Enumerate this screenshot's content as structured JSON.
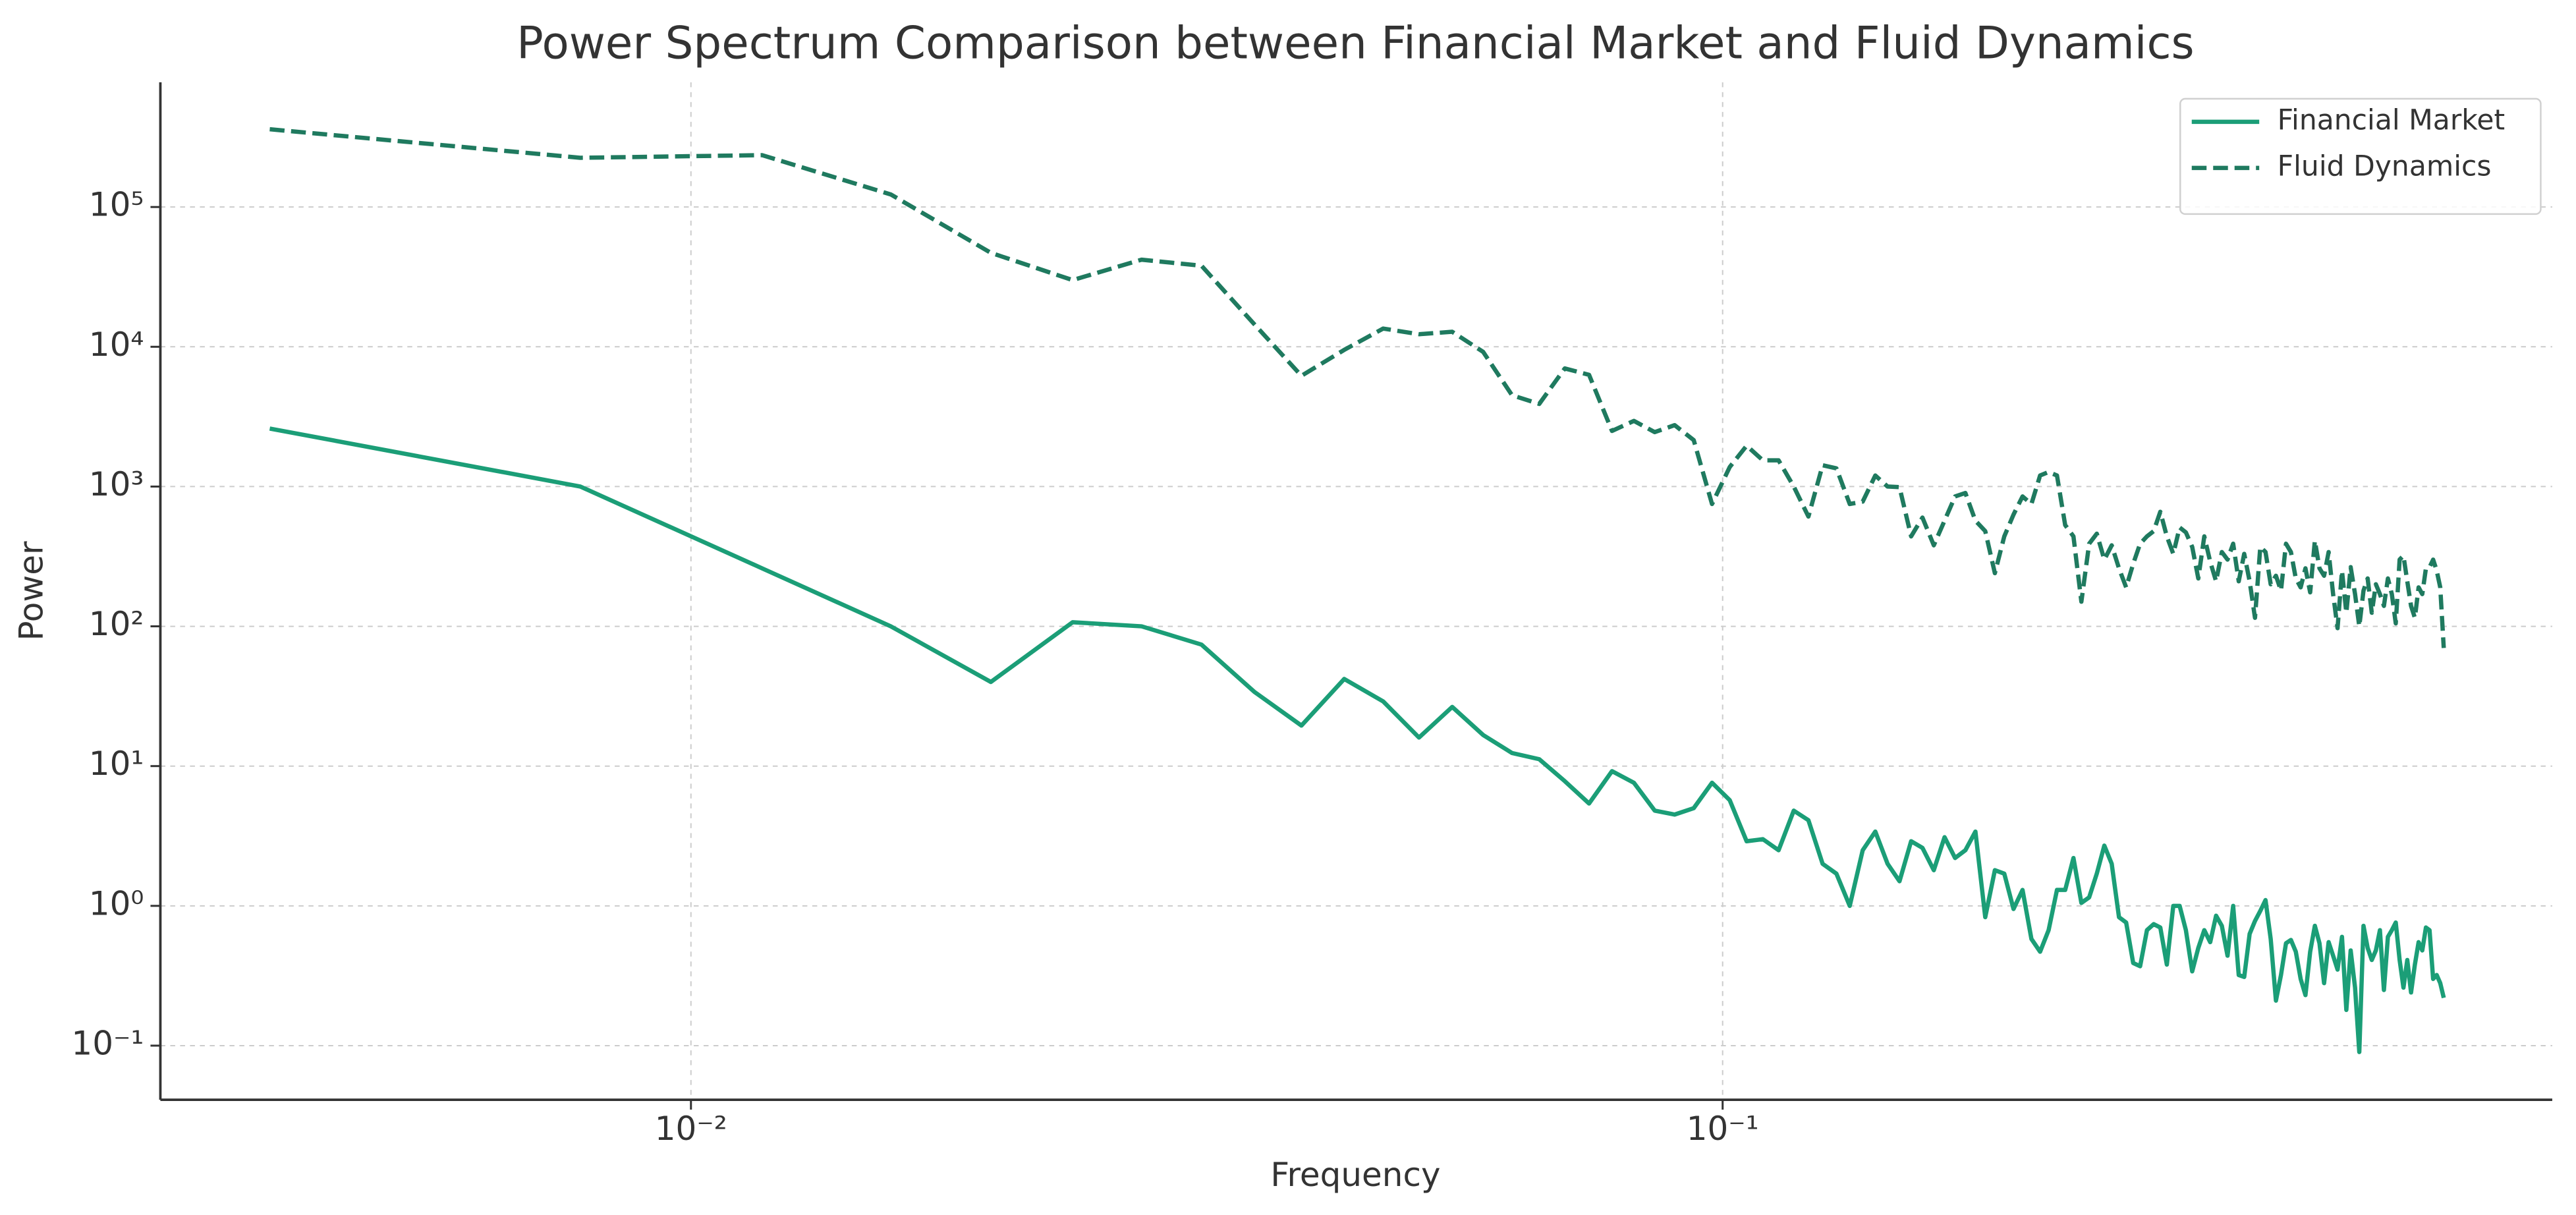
{
  "chart_data": {
    "type": "line",
    "title": "Power Spectrum Comparison between Financial Market and Fluid Dynamics",
    "xlabel": "Frequency",
    "ylabel": "Power",
    "xscale": "log",
    "yscale": "log",
    "grid": true,
    "legend": "upper right",
    "xlim": [
      0.00306,
      0.637
    ],
    "ylim": [
      0.041,
      780000
    ],
    "xticks": [
      {
        "value": 0.01,
        "label": "10⁻²"
      },
      {
        "value": 0.1,
        "label": "10⁻¹"
      }
    ],
    "yticks": [
      {
        "value": 0.1,
        "label": "10⁻¹"
      },
      {
        "value": 1,
        "label": "10⁰"
      },
      {
        "value": 10,
        "label": "10¹"
      },
      {
        "value": 100,
        "label": "10²"
      },
      {
        "value": 1000,
        "label": "10³"
      },
      {
        "value": 10000,
        "label": "10⁴"
      },
      {
        "value": 100000,
        "label": "10⁵"
      }
    ],
    "x": [
      0.003906,
      0.007812,
      0.01172,
      0.01562,
      0.01953,
      0.02344,
      0.02734,
      0.03125,
      0.03516,
      0.03906,
      0.04297,
      0.04688,
      0.05078,
      0.05469,
      0.05859,
      0.0625,
      0.06641,
      0.07031,
      0.07422,
      0.07812,
      0.08203,
      0.08594,
      0.08984,
      0.09375,
      0.09766,
      0.1016,
      0.1055,
      0.1094,
      0.1133,
      0.1172,
      0.1211,
      0.125,
      0.1289,
      0.1328,
      0.1367,
      0.1406,
      0.1445,
      0.1484,
      0.1523,
      0.1562,
      0.1602,
      0.1641,
      0.168,
      0.1719,
      0.1758,
      0.1797,
      0.1836,
      0.1875,
      0.1914,
      0.1953,
      0.1992,
      0.2031,
      0.207,
      0.2109,
      0.2148,
      0.2188,
      0.2227,
      0.2266,
      0.2305,
      0.2344,
      0.2383,
      0.2422,
      0.2461,
      0.25,
      0.2539,
      0.2578,
      0.2617,
      0.2656,
      0.2695,
      0.2734,
      0.2773,
      0.2812,
      0.2852,
      0.2891,
      0.293,
      0.2969,
      0.3008,
      0.3047,
      0.3086,
      0.3125,
      0.3164,
      0.3203,
      0.3242,
      0.3281,
      0.332,
      0.3359,
      0.3398,
      0.3438,
      0.3477,
      0.3516,
      0.3555,
      0.3594,
      0.3633,
      0.3672,
      0.3711,
      0.375,
      0.3789,
      0.3828,
      0.3867,
      0.3906,
      0.3945,
      0.3984,
      0.4023,
      0.4062,
      0.4102,
      0.4141,
      0.418,
      0.4219,
      0.4258,
      0.4297,
      0.4336,
      0.4375,
      0.4414,
      0.4453,
      0.4492,
      0.4531,
      0.457,
      0.4609,
      0.4648,
      0.4688,
      0.4727,
      0.4766,
      0.4805,
      0.4844,
      0.4883,
      0.4922,
      0.4961,
      0.5
    ],
    "series": [
      {
        "name": "Financial Market",
        "color": "#1b9e77",
        "linestyle": "solid",
        "values": [
          2600,
          1000,
          260,
          100,
          40,
          107,
          100,
          74,
          34,
          19.5,
          42,
          29,
          16,
          26.5,
          16.7,
          12.4,
          11.2,
          7.8,
          5.4,
          9.2,
          7.6,
          4.8,
          4.5,
          5,
          7.6,
          5.7,
          2.9,
          3.0,
          2.5,
          4.8,
          4.1,
          2.0,
          1.7,
          1.0,
          2.5,
          3.4,
          2.0,
          1.5,
          2.9,
          2.6,
          1.8,
          3.1,
          2.2,
          2.5,
          3.4,
          0.83,
          1.8,
          1.7,
          0.95,
          1.3,
          0.58,
          0.47,
          0.67,
          1.3,
          1.3,
          2.2,
          1.05,
          1.15,
          1.7,
          2.7,
          2.0,
          0.83,
          0.76,
          0.39,
          0.37,
          0.67,
          0.74,
          0.7,
          0.38,
          1.0,
          1.0,
          0.67,
          0.34,
          0.5,
          0.67,
          0.55,
          0.85,
          0.72,
          0.44,
          1.0,
          0.32,
          0.31,
          0.63,
          0.78,
          0.92,
          1.1,
          0.58,
          0.21,
          0.32,
          0.54,
          0.57,
          0.47,
          0.3,
          0.23,
          0.47,
          0.72,
          0.54,
          0.28,
          0.55,
          0.44,
          0.35,
          0.6,
          0.18,
          0.48,
          0.26,
          0.09,
          0.72,
          0.5,
          0.41,
          0.48,
          0.67,
          0.25,
          0.6,
          0.67,
          0.76,
          0.41,
          0.26,
          0.41,
          0.24,
          0.38,
          0.55,
          0.48,
          0.7,
          0.67,
          0.3,
          0.32,
          0.28,
          0.22
        ]
      },
      {
        "name": "Fluid Dynamics",
        "color": "#1f7a5f",
        "linestyle": "dashed",
        "values": [
          360000,
          225000,
          235000,
          123000,
          47000,
          30000,
          42000,
          38000,
          14500,
          6200,
          9500,
          13500,
          12300,
          12800,
          9200,
          4500,
          3900,
          7000,
          6300,
          2500,
          2950,
          2450,
          2750,
          2150,
          750,
          1380,
          1960,
          1540,
          1540,
          1000,
          610,
          1420,
          1350,
          750,
          780,
          1200,
          1000,
          990,
          440,
          600,
          380,
          570,
          850,
          900,
          570,
          480,
          240,
          440,
          630,
          850,
          750,
          1200,
          1270,
          1200,
          530,
          440,
          150,
          390,
          460,
          300,
          380,
          260,
          190,
          280,
          390,
          440,
          480,
          660,
          440,
          330,
          510,
          470,
          370,
          220,
          440,
          290,
          210,
          340,
          300,
          390,
          210,
          330,
          210,
          115,
          370,
          340,
          200,
          230,
          180,
          390,
          340,
          220,
          190,
          260,
          175,
          410,
          260,
          230,
          340,
          170,
          97,
          250,
          125,
          265,
          170,
          100,
          180,
          220,
          125,
          200,
          170,
          140,
          220,
          170,
          105,
          300,
          320,
          210,
          140,
          115,
          190,
          170,
          260,
          265,
          300,
          250,
          190,
          70
        ]
      }
    ]
  }
}
